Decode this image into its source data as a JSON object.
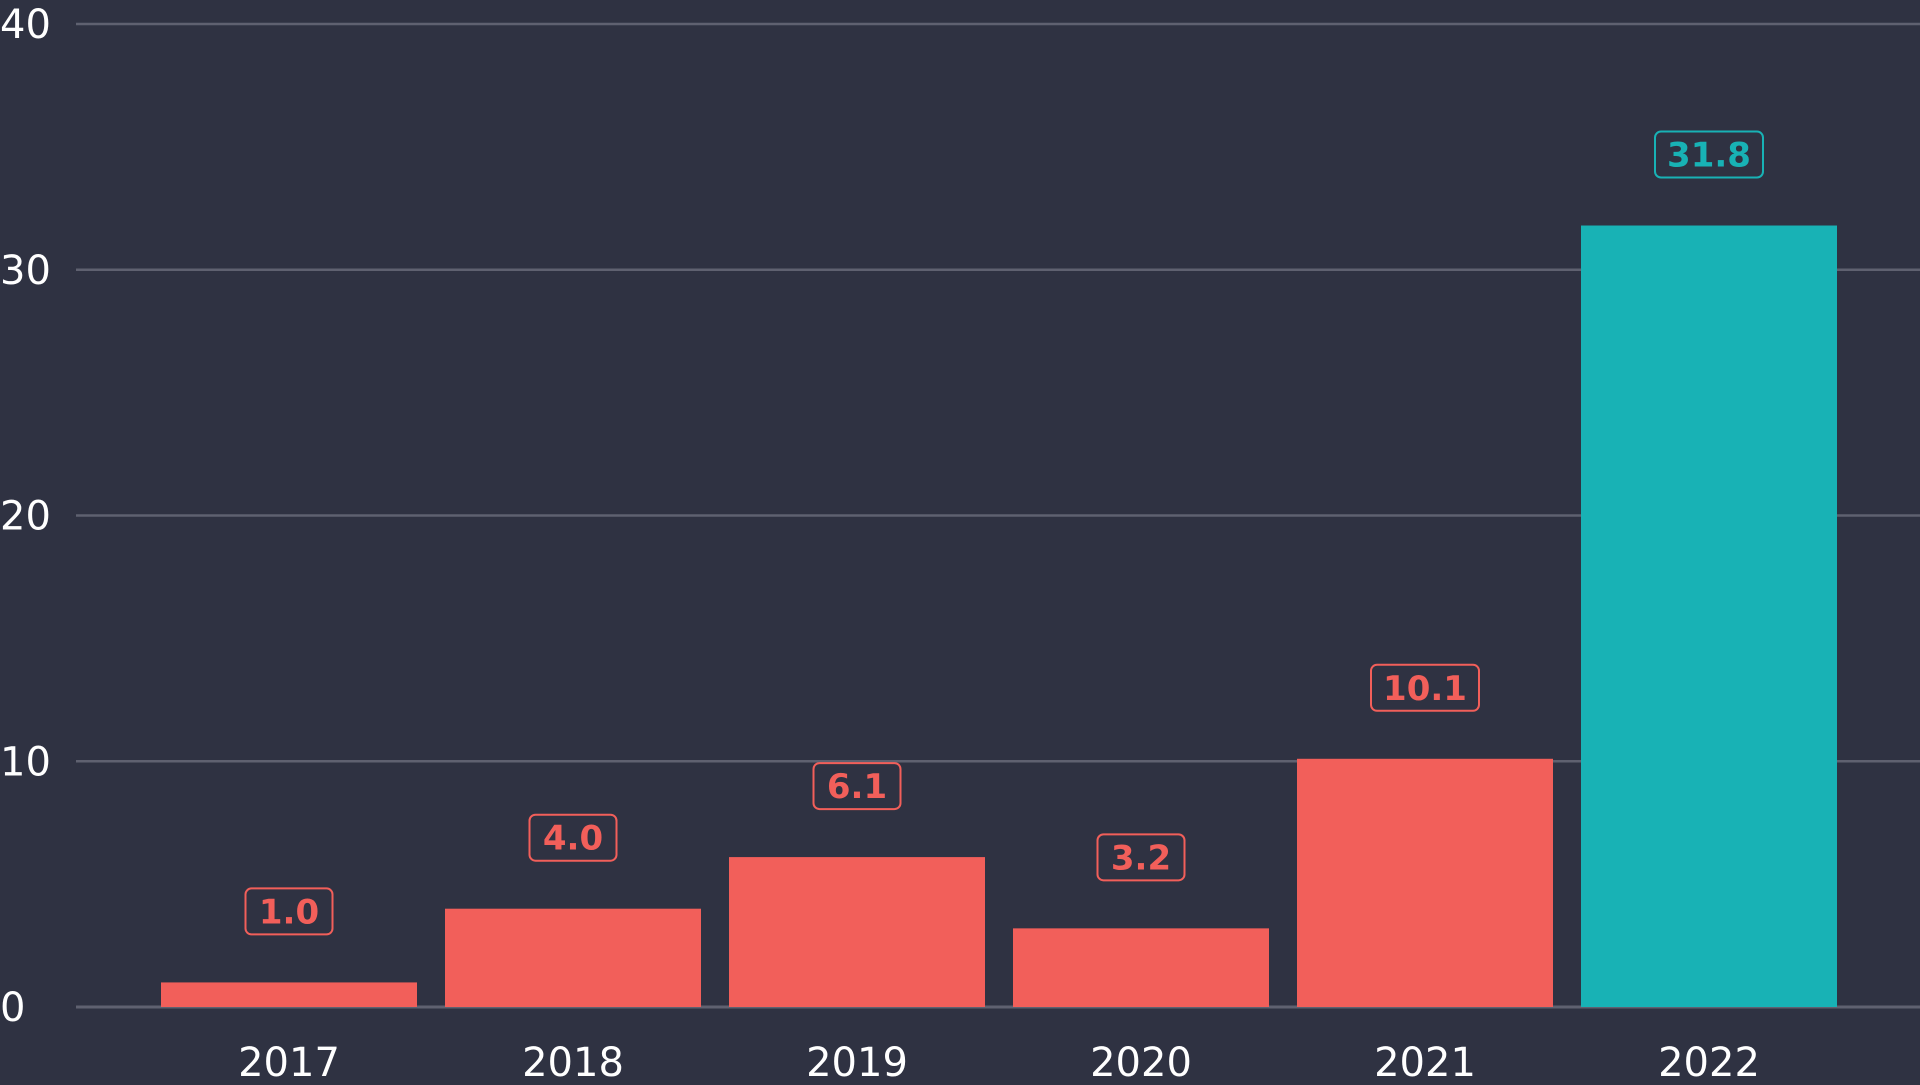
{
  "colors": {
    "background": "#2f3242",
    "gridline": "#5f6170",
    "axis_text": "#ffffff",
    "bar_default": "#f25f5a",
    "bar_highlight": "#18b2b5"
  },
  "chart_data": {
    "type": "bar",
    "title": "",
    "xlabel": "",
    "ylabel": "",
    "categories": [
      "2017",
      "2018",
      "2019",
      "2020",
      "2021",
      "2022"
    ],
    "values": [
      1.0,
      4.0,
      6.1,
      3.2,
      10.1,
      31.8
    ],
    "value_labels": [
      "1.0",
      "4.0",
      "6.1",
      "3.2",
      "10.1",
      "31.8"
    ],
    "highlight": [
      false,
      false,
      false,
      false,
      false,
      true
    ],
    "ylim": [
      0,
      40
    ],
    "yticks": [
      0,
      10,
      20,
      30,
      40
    ],
    "ytick_labels": [
      "0",
      "10",
      "20",
      "30",
      "40"
    ],
    "grid": true,
    "legend": "none"
  }
}
